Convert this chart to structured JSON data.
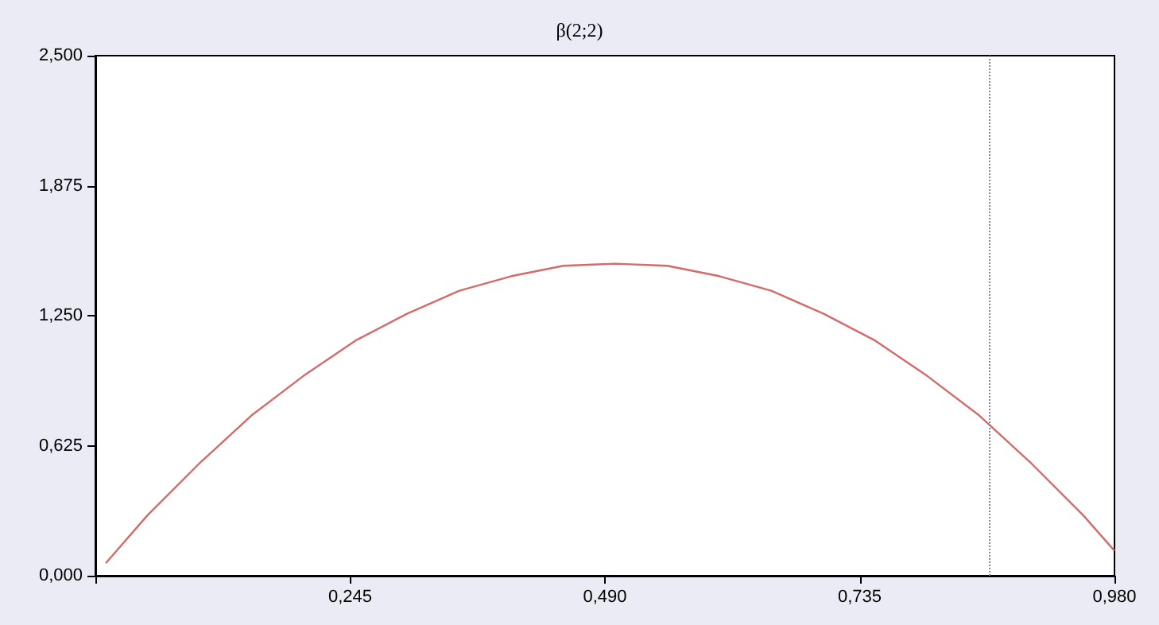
{
  "chart_data": {
    "type": "line",
    "title": "β(2;2)",
    "x": [
      0.01,
      0.05,
      0.1,
      0.15,
      0.2,
      0.25,
      0.3,
      0.35,
      0.4,
      0.45,
      0.5,
      0.55,
      0.6,
      0.65,
      0.7,
      0.75,
      0.8,
      0.85,
      0.9,
      0.95,
      0.98
    ],
    "series": [
      {
        "color": "#d46a6a",
        "values": [
          0.06,
          0.29,
          0.54,
          0.77,
          0.96,
          1.13,
          1.26,
          1.37,
          1.44,
          1.49,
          1.5,
          1.49,
          1.44,
          1.37,
          1.26,
          1.13,
          0.96,
          0.77,
          0.54,
          0.29,
          0.12
        ]
      }
    ],
    "xlim": [
      0,
      0.98
    ],
    "xticks": [
      {
        "value": 0,
        "label": null
      },
      {
        "value": 0.245,
        "label": "0,245"
      },
      {
        "value": 0.49,
        "label": "0,490"
      },
      {
        "value": 0.735,
        "label": "0,735"
      },
      {
        "value": 0.98,
        "label": "0,980"
      }
    ],
    "ylim": [
      0,
      2.5
    ],
    "yticks": [
      {
        "value": 0,
        "label": "0,000"
      },
      {
        "value": 0.625,
        "label": "0,625"
      },
      {
        "value": 1.25,
        "label": "1,250"
      },
      {
        "value": 1.875,
        "label": "1,875"
      },
      {
        "value": 2.5,
        "label": "2,500"
      }
    ],
    "ref_lines": [
      {
        "axis": "x",
        "value": 0.857,
        "color": "#888888",
        "line_style": "dotted"
      }
    ],
    "grid": false,
    "marker": "none",
    "line_style": "solid"
  }
}
